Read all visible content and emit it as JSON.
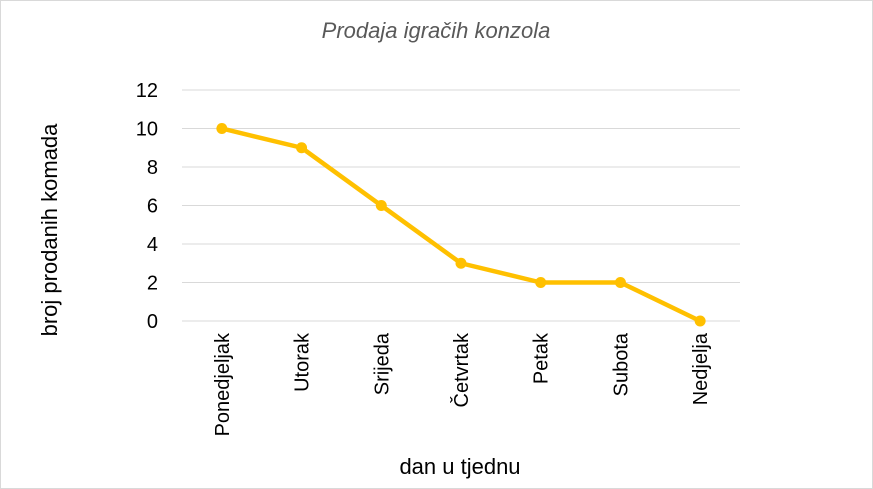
{
  "chart_data": {
    "type": "line",
    "title": "Prodaja igračih konzola",
    "x_label": "dan u tjednu",
    "y_label": "broj prodanih komada",
    "categories": [
      "Ponedjeljak",
      "Utorak",
      "Srijeda",
      "Četvrtak",
      "Petak",
      "Subota",
      "Nedjelja"
    ],
    "values": [
      10,
      9,
      6,
      3,
      2,
      2,
      0
    ],
    "color": "#ffc000",
    "ylim": [
      0,
      12
    ],
    "yticks": [
      0,
      2,
      4,
      6,
      8,
      10,
      12
    ],
    "grid": true
  }
}
